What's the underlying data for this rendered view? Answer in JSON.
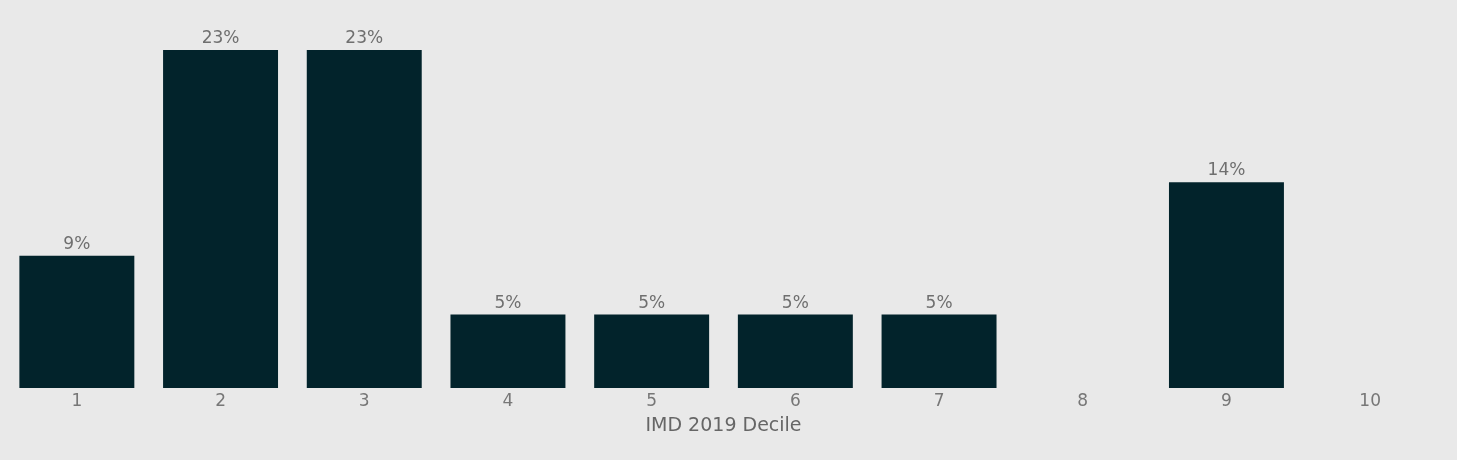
{
  "chart_data": {
    "type": "bar",
    "xlabel": "IMD 2019 Decile",
    "categories": [
      "1",
      "2",
      "3",
      "4",
      "5",
      "6",
      "7",
      "8",
      "9",
      "10"
    ],
    "values": [
      9,
      23,
      23,
      5,
      5,
      5,
      5,
      null,
      14,
      null
    ],
    "value_labels": [
      "9%",
      "23%",
      "23%",
      "5%",
      "5%",
      "5%",
      "5%",
      null,
      "14%",
      null
    ],
    "color": "#02232b",
    "grid": false,
    "legend": false
  }
}
